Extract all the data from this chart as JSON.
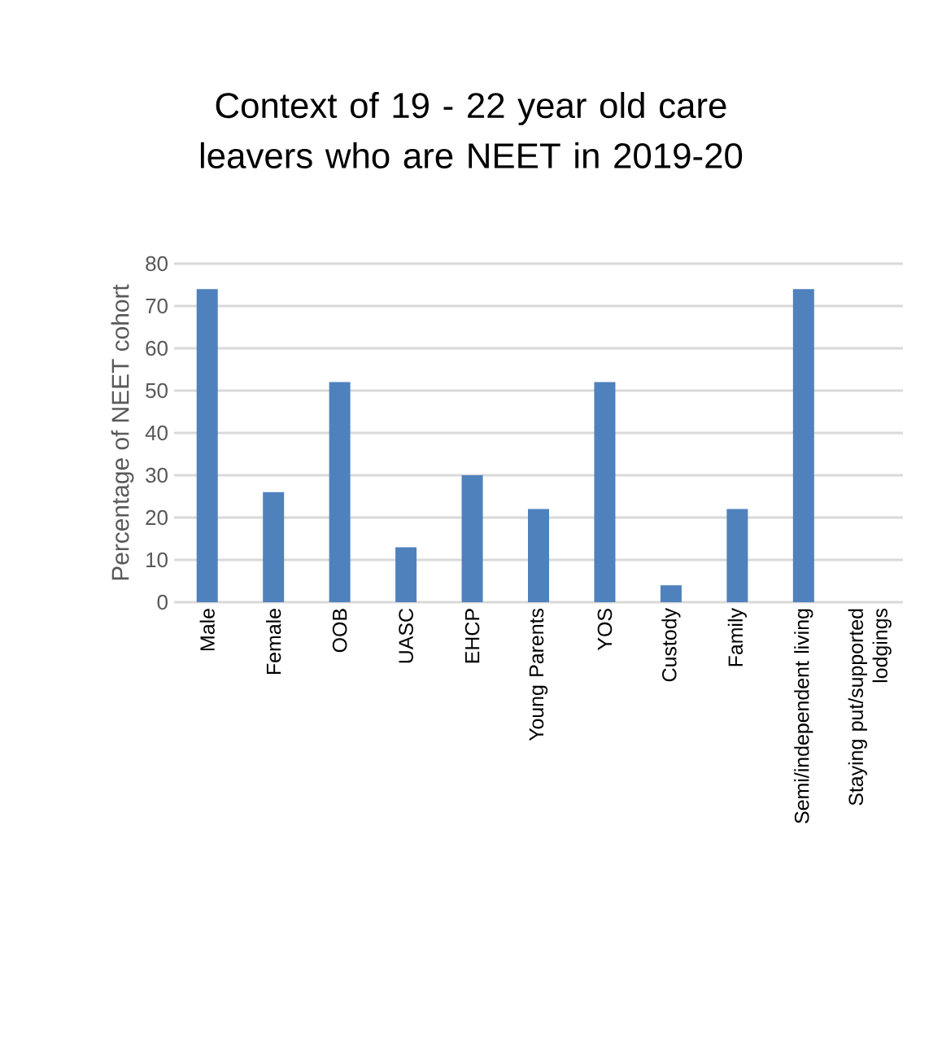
{
  "chart_data": {
    "type": "bar",
    "title": "Context of 19 - 22 year old care leavers who are NEET in 2019-20",
    "ylabel": "Percentage of NEET cohort",
    "categories": [
      "Male",
      "Female",
      "OOB",
      "UASC",
      "EHCP",
      "Young Parents",
      "YOS",
      "Custody",
      "Family",
      "Semi/independent living",
      "Staying put/supported lodgings"
    ],
    "values": [
      74,
      26,
      52,
      13,
      30,
      22,
      52,
      4,
      22,
      74,
      0
    ],
    "color": "#4f81bd",
    "ylim": [
      0,
      80
    ],
    "yticks": [
      0,
      10,
      20,
      30,
      40,
      50,
      60,
      70,
      80
    ],
    "grid": "y"
  }
}
